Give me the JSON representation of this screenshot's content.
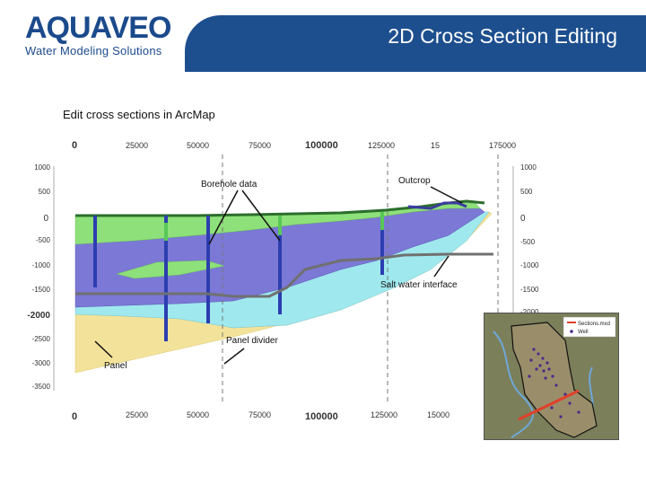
{
  "header": {
    "logo_text": "AQUAVEO",
    "logo_tagline": "Water Modeling Solutions",
    "title": "2D Cross Section Editing"
  },
  "subtitle": "Edit cross sections in ArcMap",
  "diagram": {
    "top_axis_ticks": [
      "0",
      "25000",
      "50000",
      "75000",
      "100000",
      "125000",
      "15",
      "175000"
    ],
    "bottom_axis_ticks": [
      "0",
      "25000",
      "50000",
      "75000",
      "100000",
      "125000",
      "15000"
    ],
    "left_axis_ticks": [
      "1000",
      "500",
      "0",
      "-500",
      "-1000",
      "-1500",
      "-2000",
      "-2500",
      "-3000",
      "-3500"
    ],
    "right_axis_ticks": [
      "1000",
      "500",
      "0",
      "-500",
      "-1000",
      "-1500",
      "-2000"
    ],
    "callouts": {
      "borehole": "Borehole data",
      "outcrop": "Outcrop",
      "saltwater": "Salt water interface",
      "panel_divider": "Panel divider",
      "panel": "Panel"
    }
  },
  "inset_map": {
    "legend": [
      "Sections.mxd",
      "Well"
    ]
  },
  "colors": {
    "brand_blue": "#1d4f8f",
    "layer_green": "#8ee07a",
    "layer_purple": "#7c78d6",
    "layer_cyan": "#9fe8ee",
    "layer_yellow": "#f3e39a"
  }
}
